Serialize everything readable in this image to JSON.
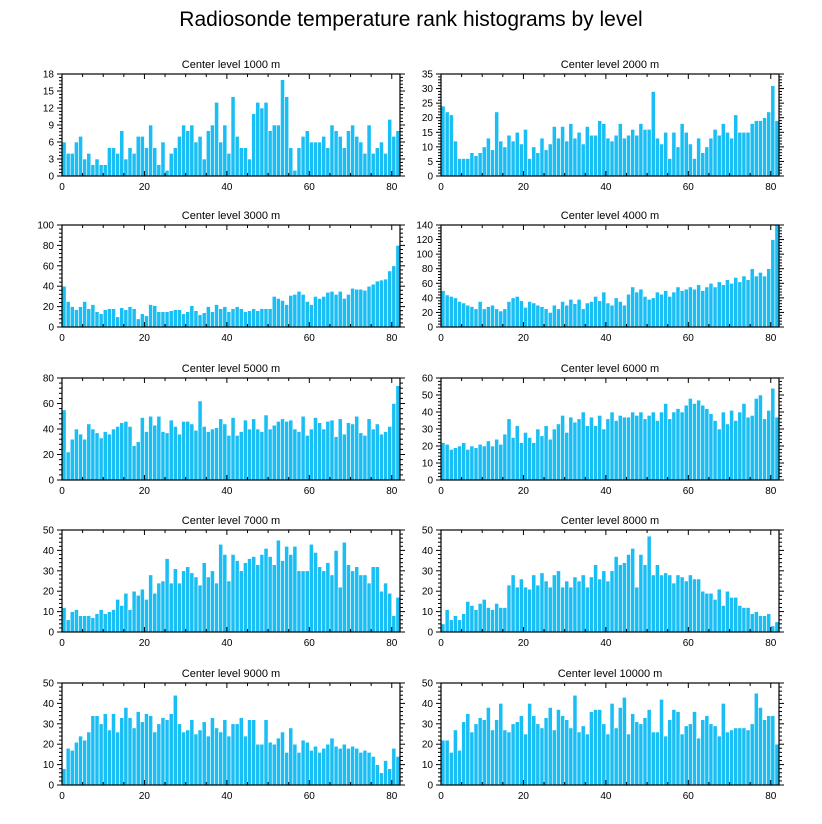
{
  "title": "Radiosonde temperature rank histograms by level",
  "colors": {
    "bar": "#19BEF5",
    "bar_stroke": "#ffffff",
    "axis": "#000000"
  },
  "chart_data": [
    {
      "type": "bar",
      "title": "Center level 1000 m",
      "xlim": [
        0,
        82
      ],
      "ylim": [
        0,
        18
      ],
      "xticks": [
        0,
        20,
        40,
        60,
        80
      ],
      "yticks": [
        0,
        3,
        6,
        9,
        12,
        15,
        18
      ],
      "values": [
        6,
        4,
        4,
        6,
        7,
        3,
        4,
        2,
        3,
        2,
        2,
        5,
        5,
        4,
        8,
        3,
        5,
        4,
        7,
        7,
        5,
        9,
        5,
        2,
        6,
        1,
        4,
        5,
        7,
        9,
        8,
        9,
        6,
        7,
        3,
        8,
        9,
        13,
        6,
        9,
        4,
        14,
        7,
        5,
        5,
        3,
        11,
        13,
        12,
        13,
        8,
        9,
        9,
        17,
        14,
        5,
        1,
        5,
        7,
        8,
        6,
        6,
        6,
        7,
        5,
        9,
        8,
        7,
        5,
        8,
        9,
        7,
        6,
        4,
        9,
        4,
        5,
        6,
        4,
        10,
        7,
        8
      ]
    },
    {
      "type": "bar",
      "title": "Center level 2000 m",
      "xlim": [
        0,
        82
      ],
      "ylim": [
        0,
        35
      ],
      "xticks": [
        0,
        20,
        40,
        60,
        80
      ],
      "yticks": [
        0,
        5,
        10,
        15,
        20,
        25,
        30,
        35
      ],
      "values": [
        24,
        22,
        21,
        12,
        6,
        6,
        6,
        8,
        7,
        8,
        10,
        13,
        9,
        22,
        12,
        10,
        14,
        12,
        15,
        11,
        16,
        6,
        10,
        8,
        13,
        9,
        11,
        17,
        13,
        17,
        12,
        18,
        13,
        15,
        11,
        17,
        14,
        14,
        19,
        18,
        13,
        12,
        14,
        18,
        13,
        14,
        16,
        14,
        18,
        16,
        16,
        29,
        13,
        11,
        15,
        6,
        15,
        10,
        18,
        15,
        11,
        6,
        13,
        8,
        10,
        13,
        16,
        14,
        18,
        15,
        13,
        21,
        15,
        15,
        15,
        18,
        19,
        19,
        20,
        22,
        31,
        19
      ]
    },
    {
      "type": "bar",
      "title": "Center level 3000 m",
      "xlim": [
        0,
        82
      ],
      "ylim": [
        0,
        100
      ],
      "xticks": [
        0,
        20,
        40,
        60,
        80
      ],
      "yticks": [
        0,
        20,
        40,
        60,
        80,
        100
      ],
      "values": [
        40,
        25,
        20,
        17,
        20,
        25,
        18,
        22,
        15,
        13,
        17,
        18,
        18,
        10,
        19,
        17,
        20,
        18,
        8,
        13,
        11,
        22,
        21,
        15,
        15,
        15,
        16,
        17,
        17,
        13,
        15,
        21,
        16,
        12,
        14,
        20,
        15,
        22,
        18,
        20,
        15,
        18,
        20,
        18,
        15,
        16,
        18,
        16,
        18,
        18,
        18,
        30,
        28,
        26,
        22,
        31,
        32,
        35,
        32,
        25,
        22,
        30,
        28,
        30,
        34,
        35,
        32,
        35,
        28,
        32,
        38,
        37,
        37,
        36,
        40,
        42,
        45,
        46,
        47,
        55,
        60,
        80
      ]
    },
    {
      "type": "bar",
      "title": "Center level 4000 m",
      "xlim": [
        0,
        82
      ],
      "ylim": [
        0,
        140
      ],
      "xticks": [
        0,
        20,
        40,
        60,
        80
      ],
      "yticks": [
        0,
        20,
        40,
        60,
        80,
        100,
        120,
        140
      ],
      "values": [
        50,
        44,
        42,
        40,
        35,
        33,
        30,
        28,
        25,
        35,
        25,
        28,
        30,
        25,
        22,
        25,
        35,
        40,
        42,
        36,
        27,
        35,
        33,
        30,
        28,
        25,
        20,
        30,
        25,
        35,
        30,
        38,
        32,
        38,
        25,
        33,
        35,
        42,
        36,
        48,
        33,
        30,
        40,
        35,
        30,
        45,
        55,
        48,
        52,
        42,
        38,
        40,
        48,
        45,
        50,
        42,
        48,
        55,
        50,
        52,
        55,
        52,
        58,
        50,
        55,
        60,
        55,
        62,
        58,
        65,
        60,
        68,
        62,
        70,
        65,
        80,
        70,
        75,
        70,
        80,
        120,
        140
      ]
    },
    {
      "type": "bar",
      "title": "Center level 5000 m",
      "xlim": [
        0,
        82
      ],
      "ylim": [
        0,
        80
      ],
      "xticks": [
        0,
        20,
        40,
        60,
        80
      ],
      "yticks": [
        0,
        20,
        40,
        60,
        80
      ],
      "values": [
        55,
        22,
        32,
        40,
        36,
        32,
        44,
        40,
        37,
        33,
        38,
        36,
        40,
        42,
        45,
        46,
        42,
        27,
        30,
        49,
        38,
        50,
        43,
        50,
        38,
        37,
        47,
        42,
        36,
        46,
        46,
        44,
        39,
        62,
        42,
        38,
        40,
        41,
        48,
        44,
        35,
        49,
        35,
        38,
        47,
        40,
        48,
        40,
        38,
        51,
        40,
        43,
        46,
        48,
        46,
        47,
        40,
        38,
        50,
        35,
        40,
        49,
        45,
        40,
        46,
        47,
        34,
        48,
        36,
        45,
        44,
        50,
        37,
        35,
        48,
        40,
        44,
        36,
        38,
        42,
        60,
        74
      ]
    },
    {
      "type": "bar",
      "title": "Center level 6000 m",
      "xlim": [
        0,
        82
      ],
      "ylim": [
        0,
        60
      ],
      "xticks": [
        0,
        20,
        40,
        60,
        80
      ],
      "yticks": [
        0,
        10,
        20,
        30,
        40,
        50,
        60
      ],
      "values": [
        22,
        21,
        18,
        19,
        20,
        22,
        18,
        20,
        19,
        21,
        20,
        23,
        20,
        24,
        21,
        27,
        36,
        25,
        32,
        22,
        28,
        25,
        22,
        30,
        26,
        32,
        24,
        30,
        33,
        38,
        28,
        37,
        34,
        36,
        40,
        32,
        37,
        32,
        38,
        30,
        36,
        40,
        35,
        38,
        37,
        37,
        40,
        38,
        40,
        36,
        38,
        40,
        35,
        40,
        45,
        36,
        40,
        42,
        40,
        44,
        48,
        45,
        47,
        44,
        42,
        39,
        35,
        30,
        40,
        33,
        41,
        35,
        40,
        45,
        37,
        38,
        48,
        50,
        36,
        41,
        54,
        37
      ]
    },
    {
      "type": "bar",
      "title": "Center level 7000 m",
      "xlim": [
        0,
        82
      ],
      "ylim": [
        0,
        50
      ],
      "xticks": [
        0,
        20,
        40,
        60,
        80
      ],
      "yticks": [
        0,
        10,
        20,
        30,
        40,
        50
      ],
      "values": [
        12,
        6,
        10,
        11,
        8,
        8,
        8,
        7,
        9,
        11,
        9,
        10,
        11,
        16,
        13,
        19,
        11,
        20,
        18,
        21,
        16,
        28,
        19,
        24,
        25,
        36,
        24,
        31,
        24,
        30,
        32,
        29,
        27,
        23,
        34,
        27,
        30,
        24,
        43,
        38,
        25,
        38,
        35,
        30,
        34,
        36,
        37,
        33,
        38,
        41,
        37,
        33,
        45,
        35,
        42,
        38,
        42,
        30,
        30,
        30,
        43,
        39,
        32,
        30,
        34,
        28,
        40,
        22,
        44,
        33,
        30,
        32,
        28,
        28,
        24,
        32,
        32,
        20,
        24,
        19,
        8,
        17
      ]
    },
    {
      "type": "bar",
      "title": "Center level 8000 m",
      "xlim": [
        0,
        82
      ],
      "ylim": [
        0,
        50
      ],
      "xticks": [
        0,
        20,
        40,
        60,
        80
      ],
      "yticks": [
        0,
        10,
        20,
        30,
        40,
        50
      ],
      "values": [
        4,
        11,
        6,
        8,
        6,
        9,
        15,
        13,
        11,
        14,
        16,
        12,
        11,
        14,
        12,
        12,
        23,
        28,
        22,
        26,
        22,
        21,
        28,
        23,
        29,
        25,
        22,
        28,
        30,
        22,
        25,
        22,
        27,
        25,
        28,
        22,
        27,
        33,
        26,
        30,
        25,
        30,
        37,
        33,
        34,
        38,
        41,
        22,
        38,
        33,
        47,
        28,
        33,
        28,
        29,
        28,
        24,
        28,
        27,
        25,
        28,
        26,
        26,
        20,
        19,
        19,
        16,
        21,
        13,
        20,
        17,
        17,
        13,
        12,
        12,
        9,
        10,
        8,
        8,
        9,
        3,
        5
      ]
    },
    {
      "type": "bar",
      "title": "Center level 9000 m",
      "xlim": [
        0,
        82
      ],
      "ylim": [
        0,
        50
      ],
      "xticks": [
        0,
        20,
        40,
        60,
        80
      ],
      "yticks": [
        0,
        10,
        20,
        30,
        40,
        50
      ],
      "values": [
        8,
        18,
        17,
        21,
        24,
        22,
        26,
        34,
        34,
        30,
        35,
        27,
        35,
        26,
        33,
        38,
        33,
        28,
        36,
        31,
        35,
        34,
        26,
        30,
        33,
        32,
        35,
        44,
        30,
        26,
        27,
        32,
        25,
        27,
        31,
        24,
        33,
        28,
        26,
        32,
        24,
        30,
        30,
        33,
        24,
        32,
        32,
        20,
        20,
        32,
        21,
        20,
        23,
        26,
        16,
        28,
        20,
        16,
        22,
        21,
        17,
        19,
        16,
        18,
        20,
        23,
        19,
        18,
        20,
        18,
        19,
        18,
        16,
        17,
        16,
        14,
        10,
        6,
        12,
        8,
        18,
        14
      ]
    },
    {
      "type": "bar",
      "title": "Center level 10000 m",
      "xlim": [
        0,
        82
      ],
      "ylim": [
        0,
        50
      ],
      "xticks": [
        0,
        20,
        40,
        60,
        80
      ],
      "yticks": [
        0,
        10,
        20,
        30,
        40,
        50
      ],
      "values": [
        22,
        22,
        16,
        27,
        17,
        31,
        35,
        26,
        30,
        33,
        32,
        38,
        27,
        32,
        40,
        27,
        26,
        30,
        31,
        34,
        25,
        40,
        34,
        30,
        28,
        33,
        38,
        27,
        37,
        34,
        32,
        28,
        44,
        26,
        29,
        25,
        36,
        37,
        37,
        30,
        25,
        40,
        28,
        38,
        43,
        25,
        35,
        31,
        30,
        33,
        37,
        26,
        26,
        42,
        24,
        32,
        37,
        36,
        25,
        29,
        30,
        36,
        23,
        32,
        34,
        30,
        29,
        24,
        40,
        26,
        27,
        28,
        28,
        28,
        27,
        30,
        45,
        38,
        32,
        34,
        34,
        20
      ]
    }
  ]
}
